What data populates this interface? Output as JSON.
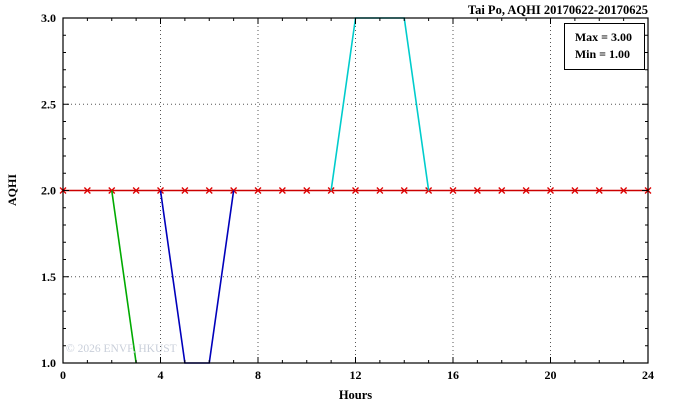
{
  "title": "Tai Po, AQHI 20170622-20170625",
  "legend": {
    "max_label": "Max = 3.00",
    "min_label": "Min = 1.00"
  },
  "watermark": {
    "text": "© 2026 ENVF, HKUST"
  },
  "chart_data": {
    "type": "line",
    "title": "Tai Po, AQHI 20170622-20170625",
    "xlabel": "Hours",
    "ylabel": "AQHI",
    "xlim": [
      0,
      24
    ],
    "ylim": [
      1,
      3
    ],
    "xticks": [
      0,
      4,
      8,
      12,
      16,
      20,
      24
    ],
    "yticks": [
      1.0,
      1.5,
      2.0,
      2.5,
      3.0
    ],
    "ytick_labels": [
      "1.0",
      "1.5",
      "2.0",
      "2.5",
      "3.0"
    ],
    "x_minor_step": 1,
    "y_minor_step": 0.1,
    "grid": true,
    "grid_style": "dotted",
    "legend_position": "top-right",
    "legend_entries": [
      "Max = 3.00",
      "Min = 1.00"
    ],
    "colors": {
      "red": "#cc0000",
      "red_marker": "#dd0000",
      "green": "#00aa00",
      "blue": "#0000bb",
      "cyan": "#00cccc"
    },
    "series": [
      {
        "name": "red-constant-2",
        "color": "#cc0000",
        "marker": "x",
        "marker_color": "#dd0000",
        "points": [
          [
            0,
            2
          ],
          [
            1,
            2
          ],
          [
            2,
            2
          ],
          [
            3,
            2
          ],
          [
            4,
            2
          ],
          [
            5,
            2
          ],
          [
            6,
            2
          ],
          [
            7,
            2
          ],
          [
            8,
            2
          ],
          [
            9,
            2
          ],
          [
            10,
            2
          ],
          [
            11,
            2
          ],
          [
            12,
            2
          ],
          [
            13,
            2
          ],
          [
            14,
            2
          ],
          [
            15,
            2
          ],
          [
            16,
            2
          ],
          [
            17,
            2
          ],
          [
            18,
            2
          ],
          [
            19,
            2
          ],
          [
            20,
            2
          ],
          [
            21,
            2
          ],
          [
            22,
            2
          ],
          [
            23,
            2
          ],
          [
            24,
            2
          ]
        ]
      },
      {
        "name": "green-dip",
        "color": "#00aa00",
        "marker": "none",
        "points": [
          [
            2,
            2
          ],
          [
            3,
            1
          ]
        ]
      },
      {
        "name": "blue-dip",
        "color": "#0000bb",
        "marker": "none",
        "points": [
          [
            4,
            2
          ],
          [
            5,
            1
          ],
          [
            6,
            1
          ],
          [
            7,
            2
          ]
        ]
      },
      {
        "name": "cyan-peak",
        "color": "#00cccc",
        "marker": "none",
        "points": [
          [
            11,
            2
          ],
          [
            12,
            3
          ],
          [
            13,
            3
          ],
          [
            14,
            3
          ],
          [
            15,
            2
          ]
        ]
      }
    ]
  }
}
